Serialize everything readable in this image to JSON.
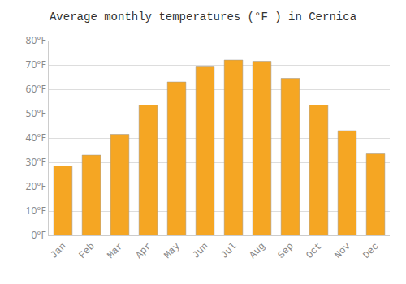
{
  "chart_data": {
    "type": "bar",
    "title": "Average monthly temperatures (°F ) in Cernica",
    "categories": [
      "Jan",
      "Feb",
      "Mar",
      "Apr",
      "May",
      "Jun",
      "Jul",
      "Aug",
      "Sep",
      "Oct",
      "Nov",
      "Dec"
    ],
    "values": [
      28.5,
      33.0,
      41.5,
      53.5,
      63.0,
      69.5,
      72.0,
      71.5,
      64.5,
      53.5,
      43.0,
      33.5
    ],
    "color": "#F5A623",
    "ylim": [
      0,
      80
    ],
    "yticks": [
      {
        "value": 0,
        "label": "0°F"
      },
      {
        "value": 10,
        "label": "10°F"
      },
      {
        "value": 20,
        "label": "20°F"
      },
      {
        "value": 30,
        "label": "30°F"
      },
      {
        "value": 40,
        "label": "40°F"
      },
      {
        "value": 50,
        "label": "50°F"
      },
      {
        "value": 60,
        "label": "60°F"
      },
      {
        "value": 70,
        "label": "70°F"
      },
      {
        "value": 80,
        "label": "80°F"
      }
    ],
    "grid": true
  }
}
